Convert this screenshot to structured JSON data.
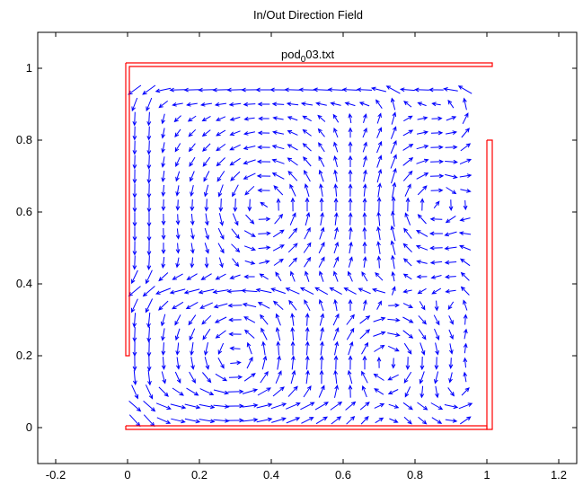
{
  "chart_data": {
    "type": "quiver",
    "title": "In/Out Direction Field",
    "subtitle_base": "pod",
    "subtitle_sub": "0",
    "subtitle_tail": "03.txt",
    "xlabel": "",
    "ylabel": "",
    "xlim": [
      -0.25,
      1.25
    ],
    "ylim": [
      -0.1,
      1.1
    ],
    "grid": false,
    "x_ticks": [
      -0.2,
      0,
      0.2,
      0.4,
      0.6,
      0.8,
      1,
      1.2
    ],
    "x_tick_labels": [
      "-0.2",
      "0",
      "0.2",
      "0.4",
      "0.6",
      "0.8",
      "1",
      "1.2"
    ],
    "y_ticks": [
      0,
      0.2,
      0.4,
      0.6,
      0.8,
      1
    ],
    "y_tick_labels": [
      "0",
      "0.2",
      "0.4",
      "0.6",
      "0.8",
      "1"
    ],
    "colors": {
      "arrows": "#0000ff",
      "boundary": "#ff0000",
      "axes": "#000000"
    },
    "boundary": [
      {
        "name": "top-wall",
        "points": [
          [
            -0.005,
            1.015
          ],
          [
            1.015,
            1.015
          ],
          [
            1.015,
            1.005
          ],
          [
            0.005,
            1.005
          ],
          [
            0.005,
            0.2
          ],
          [
            -0.005,
            0.2
          ],
          [
            -0.005,
            1.015
          ]
        ]
      },
      {
        "name": "right-wall",
        "points": [
          [
            1.0,
            0.8
          ],
          [
            1.015,
            0.8
          ],
          [
            1.015,
            -0.005
          ],
          [
            1.0,
            -0.005
          ],
          [
            1.0,
            0.8
          ]
        ]
      },
      {
        "name": "bottom-wall",
        "points": [
          [
            -0.005,
            0.005
          ],
          [
            1.0,
            0.005
          ],
          [
            1.0,
            -0.005
          ],
          [
            -0.005,
            -0.005
          ],
          [
            -0.005,
            0.005
          ]
        ]
      }
    ],
    "vortices": [
      {
        "name": "upper-left",
        "center": [
          0.38,
          0.62
        ],
        "sense": "counterclockwise"
      },
      {
        "name": "upper-right",
        "center": [
          0.86,
          0.62
        ],
        "sense": "clockwise"
      },
      {
        "name": "lower-left",
        "center": [
          0.3,
          0.2
        ],
        "sense": "counterclockwise"
      },
      {
        "name": "lower-right",
        "center": [
          0.72,
          0.18
        ],
        "sense": "clockwise"
      }
    ]
  }
}
